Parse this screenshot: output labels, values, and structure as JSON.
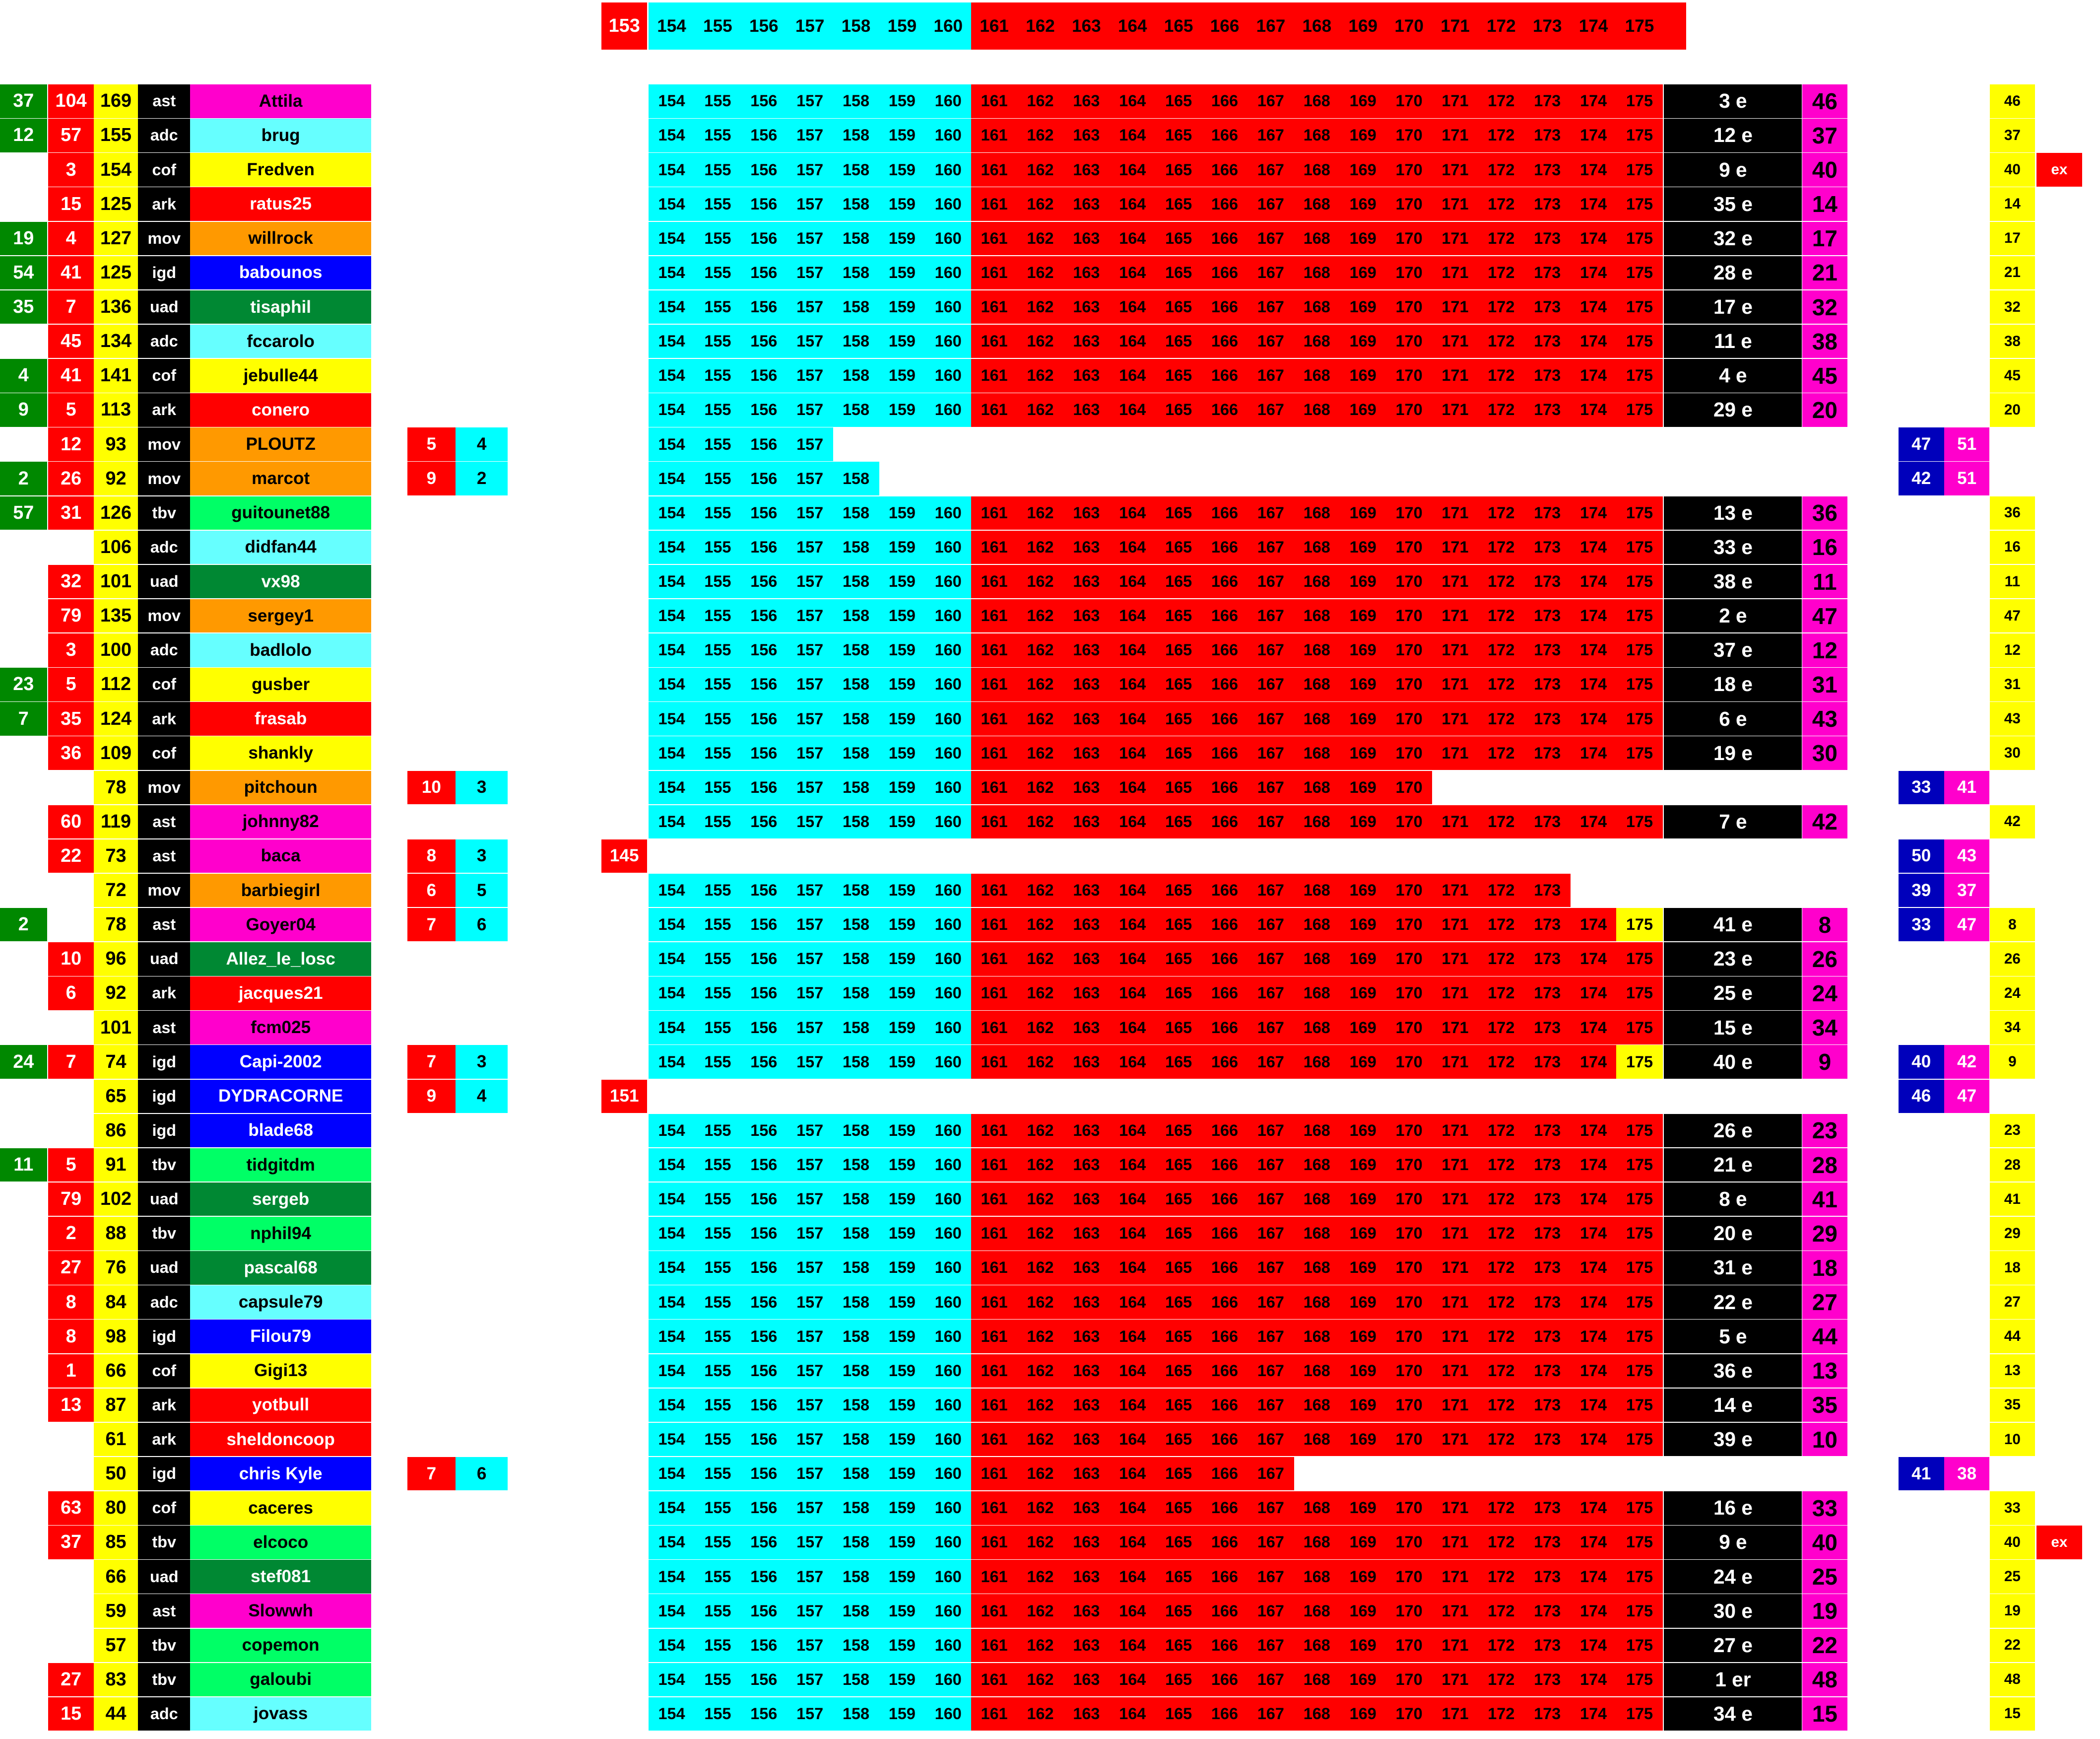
{
  "header": {
    "first": "153",
    "numbers": [
      "154",
      "155",
      "156",
      "157",
      "158",
      "159",
      "160",
      "161",
      "162",
      "163",
      "164",
      "165",
      "166",
      "167",
      "168",
      "169",
      "170",
      "171",
      "172",
      "173",
      "174",
      "175"
    ]
  },
  "teams": {
    "ast": "#ff00cc",
    "adc": "#66ffff",
    "cof": "#ffff00",
    "ark": "#ff0000",
    "mov": "#ff9900",
    "igd": "#0000ff",
    "uad": "#008833",
    "tbv": "#00ff66"
  },
  "palette": {
    "cyan": "#00ffff",
    "red": "#ff0000",
    "black": "#000000",
    "magenta": "#ff00cc",
    "yellow": "#ffff00",
    "green": "#008800",
    "navy": "#0000bb",
    "white": "#ffffff"
  },
  "rows": [
    {
      "g": "37",
      "r": "104",
      "y": "169",
      "team": "ast",
      "name": "Attila",
      "end": "175",
      "rank": "3 e",
      "score": "46",
      "right": "46"
    },
    {
      "g": "12",
      "r": "57",
      "y": "155",
      "team": "adc",
      "name": "brug",
      "end": "175",
      "rank": "12 e",
      "score": "37",
      "right": "37"
    },
    {
      "g": "",
      "r": "3",
      "y": "154",
      "team": "cof",
      "name": "Fredven",
      "end": "175",
      "rank": "9 e",
      "score": "40",
      "right": "40",
      "ex": "ex"
    },
    {
      "g": "",
      "r": "15",
      "y": "125",
      "team": "ark",
      "name": "ratus25",
      "end": "175",
      "rank": "35 e",
      "score": "14",
      "right": "14"
    },
    {
      "g": "19",
      "r": "4",
      "y": "127",
      "team": "mov",
      "name": "willrock",
      "end": "175",
      "rank": "32 e",
      "score": "17",
      "right": "17"
    },
    {
      "g": "54",
      "r": "41",
      "y": "125",
      "team": "igd",
      "name": "babounos",
      "end": "175",
      "rank": "28 e",
      "score": "21",
      "right": "21"
    },
    {
      "g": "35",
      "r": "7",
      "y": "136",
      "team": "uad",
      "name": "tisaphil",
      "end": "175",
      "rank": "17 e",
      "score": "32",
      "right": "32"
    },
    {
      "g": "",
      "r": "45",
      "y": "134",
      "team": "adc",
      "name": "fccarolo",
      "end": "175",
      "rank": "11 e",
      "score": "38",
      "right": "38"
    },
    {
      "g": "4",
      "r": "41",
      "y": "141",
      "team": "cof",
      "name": "jebulle44",
      "end": "175",
      "rank": "4 e",
      "score": "45",
      "right": "45"
    },
    {
      "g": "9",
      "r": "5",
      "y": "113",
      "team": "ark",
      "name": "conero",
      "end": "175",
      "rank": "29 e",
      "score": "20",
      "right": "20"
    },
    {
      "g": "",
      "r": "12",
      "y": "93",
      "team": "mov",
      "name": "PLOUTZ",
      "bk": "5",
      "bc": "4",
      "end": "157",
      "nb": "47",
      "mg": "51"
    },
    {
      "g": "2",
      "r": "26",
      "y": "92",
      "team": "mov",
      "name": "marcot",
      "bk": "9",
      "bc": "2",
      "end": "158",
      "nb": "42",
      "mg": "51"
    },
    {
      "g": "57",
      "r": "31",
      "y": "126",
      "team": "tbv",
      "name": "guitounet88",
      "end": "175",
      "rank": "13 e",
      "score": "36",
      "right": "36"
    },
    {
      "g": "",
      "r": "",
      "y": "106",
      "team": "adc",
      "name": "didfan44",
      "end": "175",
      "rank": "33 e",
      "score": "16",
      "right": "16"
    },
    {
      "g": "",
      "r": "32",
      "y": "101",
      "team": "uad",
      "name": "vx98",
      "end": "175",
      "rank": "38 e",
      "score": "11",
      "right": "11"
    },
    {
      "g": "",
      "r": "79",
      "y": "135",
      "team": "mov",
      "name": "sergey1",
      "end": "175",
      "rank": "2 e",
      "score": "47",
      "right": "47"
    },
    {
      "g": "",
      "r": "3",
      "y": "100",
      "team": "adc",
      "name": "badlolo",
      "end": "175",
      "rank": "37 e",
      "score": "12",
      "right": "12"
    },
    {
      "g": "23",
      "r": "5",
      "y": "112",
      "team": "cof",
      "name": "gusber",
      "end": "175",
      "rank": "18 e",
      "score": "31",
      "right": "31"
    },
    {
      "g": "7",
      "r": "35",
      "y": "124",
      "team": "ark",
      "name": "frasab",
      "end": "175",
      "rank": "6 e",
      "score": "43",
      "right": "43"
    },
    {
      "g": "",
      "r": "36",
      "y": "109",
      "team": "cof",
      "name": "shankly",
      "end": "175",
      "rank": "19 e",
      "score": "30",
      "right": "30"
    },
    {
      "g": "",
      "r": "",
      "y": "78",
      "team": "mov",
      "name": "pitchoun",
      "bk": "10",
      "bc": "3",
      "end": "170",
      "nb": "33",
      "mg": "41"
    },
    {
      "g": "",
      "r": "60",
      "y": "119",
      "team": "ast",
      "name": "johnny82",
      "end": "175",
      "rank": "7 e",
      "score": "42",
      "right": "42"
    },
    {
      "g": "",
      "r": "22",
      "y": "73",
      "team": "ast",
      "name": "baca",
      "bk": "8",
      "bc": "3",
      "tag": "145",
      "end": "",
      "nb": "50",
      "mg": "43"
    },
    {
      "g": "",
      "r": "",
      "y": "72",
      "team": "mov",
      "name": "barbiegirl",
      "bk": "6",
      "bc": "5",
      "end": "173",
      "nb": "39",
      "mg": "37"
    },
    {
      "g": "2",
      "r": "",
      "y": "78",
      "team": "ast",
      "name": "Goyer04",
      "bk": "7",
      "bc": "6",
      "end": "175",
      "hl": "1",
      "rank": "41 e",
      "score": "8",
      "nb": "33",
      "mg": "47",
      "right": "8"
    },
    {
      "g": "",
      "r": "10",
      "y": "96",
      "team": "uad",
      "name": "Allez_le_losc",
      "end": "175",
      "rank": "23 e",
      "score": "26",
      "right": "26"
    },
    {
      "g": "",
      "r": "6",
      "y": "92",
      "team": "ark",
      "name": "jacques21",
      "end": "175",
      "rank": "25 e",
      "score": "24",
      "right": "24"
    },
    {
      "g": "",
      "r": "",
      "y": "101",
      "team": "ast",
      "name": "fcm025",
      "end": "175",
      "rank": "15 e",
      "score": "34",
      "right": "34"
    },
    {
      "g": "24",
      "r": "7",
      "y": "74",
      "team": "igd",
      "name": "Capi-2002",
      "bk": "7",
      "bc": "3",
      "end": "175",
      "hl": "1",
      "rank": "40 e",
      "score": "9",
      "nb": "40",
      "mg": "42",
      "right": "9"
    },
    {
      "g": "",
      "r": "",
      "y": "65",
      "team": "igd",
      "name": "DYDRACORNE",
      "bk": "9",
      "bc": "4",
      "tag": "151",
      "end": "",
      "nb": "46",
      "mg": "47"
    },
    {
      "g": "",
      "r": "",
      "y": "86",
      "team": "igd",
      "name": "blade68",
      "end": "175",
      "rank": "26 e",
      "score": "23",
      "right": "23"
    },
    {
      "g": "11",
      "r": "5",
      "y": "91",
      "team": "tbv",
      "name": "tidgitdm",
      "end": "175",
      "rank": "21 e",
      "score": "28",
      "right": "28"
    },
    {
      "g": "",
      "r": "79",
      "y": "102",
      "team": "uad",
      "name": "sergeb",
      "end": "175",
      "rank": "8 e",
      "score": "41",
      "right": "41"
    },
    {
      "g": "",
      "r": "2",
      "y": "88",
      "team": "tbv",
      "name": "nphil94",
      "end": "175",
      "rank": "20 e",
      "score": "29",
      "right": "29"
    },
    {
      "g": "",
      "r": "27",
      "y": "76",
      "team": "uad",
      "name": "pascal68",
      "end": "175",
      "rank": "31 e",
      "score": "18",
      "right": "18"
    },
    {
      "g": "",
      "r": "8",
      "y": "84",
      "team": "adc",
      "name": "capsule79",
      "end": "175",
      "rank": "22 e",
      "score": "27",
      "right": "27"
    },
    {
      "g": "",
      "r": "8",
      "y": "98",
      "team": "igd",
      "name": "Filou79",
      "end": "175",
      "rank": "5 e",
      "score": "44",
      "right": "44"
    },
    {
      "g": "",
      "r": "1",
      "y": "66",
      "team": "cof",
      "name": "Gigi13",
      "end": "175",
      "rank": "36 e",
      "score": "13",
      "right": "13"
    },
    {
      "g": "",
      "r": "13",
      "y": "87",
      "team": "ark",
      "name": "yotbull",
      "end": "175",
      "rank": "14 e",
      "score": "35",
      "right": "35"
    },
    {
      "g": "",
      "r": "",
      "y": "61",
      "team": "ark",
      "name": "sheldoncoop",
      "end": "175",
      "rank": "39 e",
      "score": "10",
      "right": "10"
    },
    {
      "g": "",
      "r": "",
      "y": "50",
      "team": "igd",
      "name": "chris Kyle",
      "bk": "7",
      "bc": "6",
      "end": "167",
      "nb": "41",
      "mg": "38"
    },
    {
      "g": "",
      "r": "63",
      "y": "80",
      "team": "cof",
      "name": "caceres",
      "end": "175",
      "rank": "16 e",
      "score": "33",
      "right": "33"
    },
    {
      "g": "",
      "r": "37",
      "y": "85",
      "team": "tbv",
      "name": "elcoco",
      "end": "175",
      "rank": "9 e",
      "score": "40",
      "right": "40",
      "ex": "ex"
    },
    {
      "g": "",
      "r": "",
      "y": "66",
      "team": "uad",
      "name": "stef081",
      "end": "175",
      "rank": "24 e",
      "score": "25",
      "right": "25"
    },
    {
      "g": "",
      "r": "",
      "y": "59",
      "team": "ast",
      "name": "Slowwh",
      "end": "175",
      "rank": "30 e",
      "score": "19",
      "right": "19"
    },
    {
      "g": "",
      "r": "",
      "y": "57",
      "team": "tbv",
      "name": "copemon",
      "end": "175",
      "rank": "27 e",
      "score": "22",
      "right": "22"
    },
    {
      "g": "",
      "r": "27",
      "y": "83",
      "team": "tbv",
      "name": "galoubi",
      "end": "175",
      "rank": "1 er",
      "score": "48",
      "right": "48"
    },
    {
      "g": "",
      "r": "15",
      "y": "44",
      "team": "adc",
      "name": "jovass",
      "end": "175",
      "rank": "34 e",
      "score": "15",
      "right": "15"
    }
  ]
}
